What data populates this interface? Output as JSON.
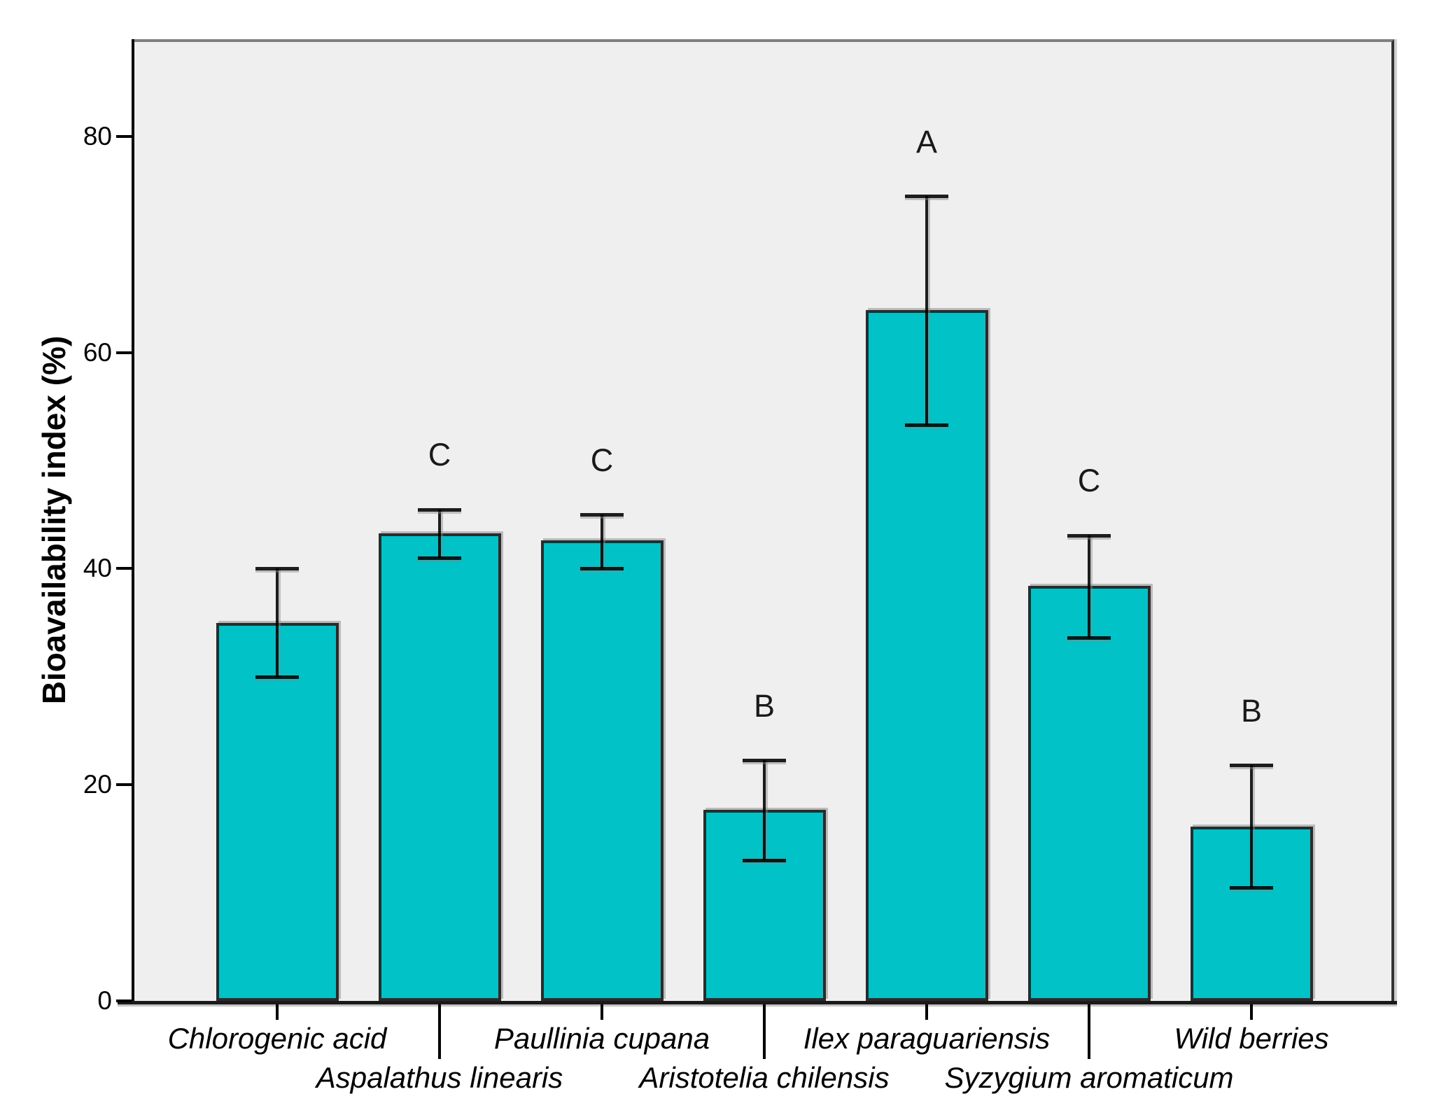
{
  "chart_data": {
    "type": "bar",
    "title": "",
    "xlabel": "",
    "ylabel": "Bioavailability index (%)",
    "ylim": [
      0,
      89
    ],
    "yticks": [
      0,
      20,
      40,
      60,
      80
    ],
    "grid": false,
    "legend": "none",
    "categories": [
      "Chlorogenic acid",
      "Aspalathus linearis",
      "Paullinia cupana",
      "Aristotelia chilensis",
      "Ilex paraguariensis",
      "Syzygium aromaticum",
      "Wild berries"
    ],
    "series": [
      {
        "name": "Bioavailability index (%)",
        "values": [
          35.0,
          43.3,
          42.6,
          17.7,
          63.9,
          38.4,
          16.1
        ]
      }
    ],
    "error_low": [
      30.0,
      41.0,
      40.0,
      13.0,
      53.3,
      33.6,
      10.5
    ],
    "error_high": [
      40.0,
      45.5,
      45.0,
      22.3,
      74.5,
      43.1,
      21.8
    ],
    "sig_letters": [
      "",
      "C",
      "C",
      "B",
      "A",
      "C",
      "B"
    ],
    "colors": {
      "bar_fill": "#00C2C7",
      "bar_border": "#2B2B2B",
      "plot_bg": "#EFEFEF",
      "outer_bg": "#FFFFFF",
      "axis": "#000000",
      "error_bar": "rgba(0,0,0,0.88)",
      "text": "#000000"
    }
  }
}
